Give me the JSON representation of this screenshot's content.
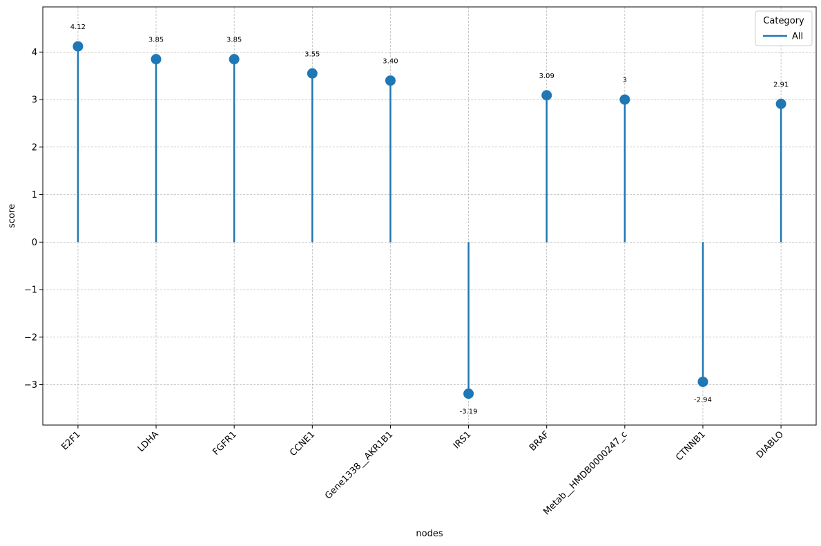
{
  "chart_data": {
    "type": "lollipop",
    "categories": [
      "E2F1",
      "LDHA",
      "FGFR1",
      "CCNE1",
      "Gene1338__AKR1B1",
      "IRS1",
      "BRAF",
      "Metab__HMDB0000247_c",
      "CTNNB1",
      "DIABLO"
    ],
    "series": [
      {
        "name": "All",
        "values": [
          4.12,
          3.85,
          3.85,
          3.55,
          3.4,
          -3.19,
          3.09,
          3.0,
          -2.94,
          2.91
        ],
        "value_labels": [
          "4.12",
          "3.85",
          "3.85",
          "3.55",
          "3.40",
          "-3.19",
          "3.09",
          "3",
          "-2.94",
          "2.91"
        ]
      }
    ],
    "xlabel": "nodes",
    "ylabel": "score",
    "ylim": [
      -3.85,
      4.95
    ],
    "yticks": [
      -3,
      -2,
      -1,
      0,
      1,
      2,
      3,
      4
    ],
    "ytick_labels": [
      "−3",
      "−2",
      "−1",
      "0",
      "1",
      "2",
      "3",
      "4"
    ],
    "grid": true,
    "legend": {
      "title": "Category",
      "placement": "top-right"
    },
    "colors": {
      "series": "#1f77b4",
      "grid": "#b0b0b0",
      "axis": "#000000"
    }
  }
}
